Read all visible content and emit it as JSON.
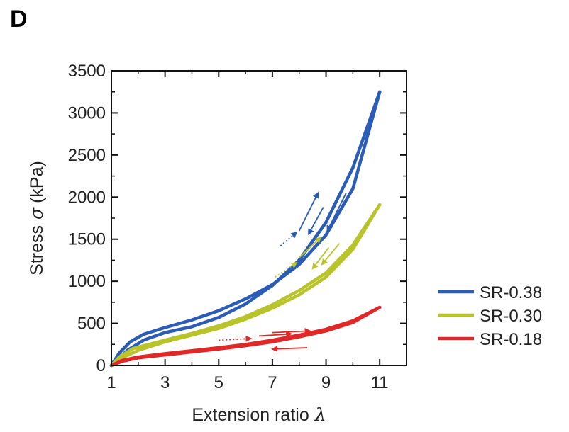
{
  "panel_label": "D",
  "chart_data": {
    "type": "line",
    "title": "",
    "xlabel": "Extension ratio",
    "xlabel_symbol": "λ",
    "ylabel": "Stress",
    "ylabel_symbol": "σ",
    "ylabel_unit": "(kPa)",
    "xlim": [
      1,
      12
    ],
    "ylim": [
      0,
      3500
    ],
    "xticks": [
      1,
      3,
      5,
      7,
      9,
      11
    ],
    "yticks": [
      0,
      500,
      1000,
      1500,
      2000,
      2500,
      3000,
      3500
    ],
    "grid": false,
    "legend_position": "right",
    "series": [
      {
        "name": "SR-0.38",
        "color": "#2a5cb8",
        "loading": [
          [
            1,
            0
          ],
          [
            1.3,
            150
          ],
          [
            1.7,
            280
          ],
          [
            2.2,
            370
          ],
          [
            3,
            450
          ],
          [
            4,
            540
          ],
          [
            5,
            650
          ],
          [
            6,
            790
          ],
          [
            7,
            960
          ],
          [
            8,
            1200
          ],
          [
            9,
            1550
          ],
          [
            10,
            2100
          ],
          [
            11,
            3250
          ]
        ],
        "unloading": [
          [
            11,
            3250
          ],
          [
            10,
            2350
          ],
          [
            9,
            1700
          ],
          [
            8,
            1250
          ],
          [
            7,
            950
          ],
          [
            6,
            730
          ],
          [
            5,
            570
          ],
          [
            4,
            460
          ],
          [
            3,
            390
          ],
          [
            2.2,
            300
          ],
          [
            1.6,
            180
          ],
          [
            1.2,
            60
          ],
          [
            1,
            0
          ]
        ]
      },
      {
        "name": "SR-0.30",
        "color": "#b9c42a",
        "loading": [
          [
            1,
            0
          ],
          [
            1.3,
            100
          ],
          [
            1.8,
            200
          ],
          [
            3,
            300
          ],
          [
            4,
            380
          ],
          [
            5,
            470
          ],
          [
            6,
            580
          ],
          [
            7,
            720
          ],
          [
            8,
            890
          ],
          [
            9,
            1100
          ],
          [
            10,
            1430
          ],
          [
            11,
            1910
          ]
        ],
        "unloading": [
          [
            11,
            1910
          ],
          [
            10,
            1380
          ],
          [
            9,
            1050
          ],
          [
            8,
            840
          ],
          [
            7,
            680
          ],
          [
            6,
            550
          ],
          [
            5,
            440
          ],
          [
            4,
            360
          ],
          [
            3,
            280
          ],
          [
            2,
            180
          ],
          [
            1.4,
            90
          ],
          [
            1,
            0
          ]
        ]
      },
      {
        "name": "SR-0.18",
        "color": "#e02828",
        "loading": [
          [
            1,
            0
          ],
          [
            1.4,
            60
          ],
          [
            2,
            100
          ],
          [
            3,
            140
          ],
          [
            4,
            175
          ],
          [
            5,
            210
          ],
          [
            6,
            250
          ],
          [
            7,
            300
          ],
          [
            8,
            360
          ],
          [
            9,
            430
          ],
          [
            10,
            530
          ],
          [
            11,
            690
          ]
        ],
        "unloading": [
          [
            11,
            690
          ],
          [
            10,
            510
          ],
          [
            9,
            410
          ],
          [
            8,
            340
          ],
          [
            7,
            280
          ],
          [
            6,
            235
          ],
          [
            5,
            195
          ],
          [
            4,
            160
          ],
          [
            3,
            125
          ],
          [
            2,
            90
          ],
          [
            1.4,
            50
          ],
          [
            1,
            0
          ]
        ]
      }
    ],
    "arrows": [
      {
        "series": 0,
        "kind": "dotted",
        "from": [
          7.3,
          1420
        ],
        "to": [
          7.9,
          1580
        ]
      },
      {
        "series": 0,
        "kind": "solid",
        "from": [
          8.0,
          1600
        ],
        "to": [
          8.7,
          2050
        ]
      },
      {
        "series": 0,
        "kind": "solid",
        "from": [
          8.9,
          1880
        ],
        "to": [
          8.35,
          1560
        ]
      },
      {
        "series": 0,
        "kind": "solid",
        "from": [
          9.75,
          2050
        ],
        "to": [
          9.05,
          1600
        ]
      },
      {
        "series": 1,
        "kind": "dotted",
        "from": [
          7.1,
          1050
        ],
        "to": [
          7.9,
          1220
        ]
      },
      {
        "series": 1,
        "kind": "solid",
        "from": [
          8.0,
          1280
        ],
        "to": [
          8.8,
          1520
        ]
      },
      {
        "series": 1,
        "kind": "solid",
        "from": [
          9.1,
          1400
        ],
        "to": [
          8.5,
          1150
        ]
      },
      {
        "series": 1,
        "kind": "solid",
        "from": [
          9.5,
          1450
        ],
        "to": [
          8.85,
          1200
        ]
      },
      {
        "series": 2,
        "kind": "dotted",
        "from": [
          5.0,
          300
        ],
        "to": [
          6.2,
          320
        ]
      },
      {
        "series": 2,
        "kind": "solid",
        "from": [
          6.5,
          350
        ],
        "to": [
          7.7,
          375
        ]
      },
      {
        "series": 2,
        "kind": "solid",
        "from": [
          7.0,
          390
        ],
        "to": [
          8.4,
          410
        ]
      },
      {
        "series": 2,
        "kind": "solid",
        "from": [
          8.3,
          210
        ],
        "to": [
          7.0,
          195
        ]
      }
    ]
  }
}
